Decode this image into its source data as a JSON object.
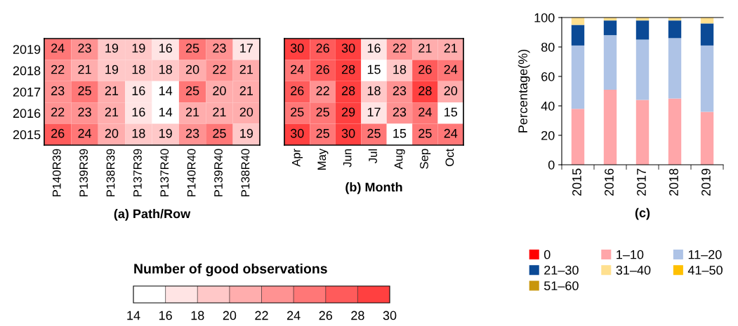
{
  "chart_data": [
    {
      "type": "heatmap",
      "xlabel": "(a) Path/Row",
      "categories": [
        "P140R39",
        "P139R39",
        "P138R39",
        "P137R39",
        "P137R40",
        "P140R40",
        "P139R40",
        "P138R40"
      ],
      "y_categories": [
        "2019",
        "2018",
        "2017",
        "2016",
        "2015"
      ],
      "cells": [
        [
          24,
          23,
          19,
          19,
          16,
          25,
          23,
          17
        ],
        [
          22,
          21,
          19,
          18,
          18,
          20,
          22,
          21
        ],
        [
          23,
          25,
          21,
          16,
          14,
          25,
          20,
          21
        ],
        [
          22,
          23,
          21,
          16,
          14,
          21,
          21,
          20
        ],
        [
          26,
          24,
          20,
          18,
          19,
          23,
          25,
          19
        ]
      ],
      "data_labels": true,
      "clabel": "Number of good observations",
      "clim": [
        14,
        30
      ],
      "cticks": [
        14,
        16,
        18,
        20,
        22,
        24,
        26,
        28,
        30
      ]
    },
    {
      "type": "heatmap",
      "xlabel": "(b) Month",
      "categories": [
        "Apr",
        "May",
        "Jun",
        "Jul",
        "Aug",
        "Sep",
        "Oct"
      ],
      "y_categories": [
        "2019",
        "2018",
        "2017",
        "2016",
        "2015"
      ],
      "tick_labels": "x",
      "cells": [
        [
          30,
          26,
          30,
          16,
          22,
          21,
          21
        ],
        [
          24,
          26,
          28,
          15,
          18,
          26,
          24
        ],
        [
          26,
          22,
          28,
          18,
          23,
          28,
          20
        ],
        [
          25,
          25,
          29,
          17,
          23,
          24,
          15
        ],
        [
          30,
          25,
          30,
          25,
          15,
          25,
          24
        ]
      ],
      "data_labels": true
    },
    {
      "type": "bar",
      "stacked": true,
      "xlabel": "(c)",
      "ylabel": "Percentage(%)",
      "categories": [
        "2015",
        "2016",
        "2017",
        "2018",
        "2019"
      ],
      "ylim": [
        0,
        100
      ],
      "yticks": [
        0,
        20,
        40,
        60,
        80,
        100
      ],
      "legend": "bottom",
      "grid": false,
      "series": [
        {
          "name": "0",
          "color": "#ff0000",
          "values": [
            0,
            0,
            0,
            0,
            0
          ]
        },
        {
          "name": "1–10",
          "color": "#ffa6a9",
          "values": [
            38,
            51,
            44,
            45,
            36
          ]
        },
        {
          "name": "11–20",
          "color": "#aec3e6",
          "values": [
            43,
            37,
            41,
            41,
            45
          ]
        },
        {
          "name": "21–30",
          "color": "#0b4a96",
          "values": [
            14,
            10,
            13,
            12,
            15
          ]
        },
        {
          "name": "31–40",
          "color": "#ffe08f",
          "values": [
            5,
            2,
            2,
            2,
            4
          ]
        },
        {
          "name": "41–50",
          "color": "#ffc000",
          "values": [
            0,
            0,
            0,
            0,
            0
          ]
        },
        {
          "name": "51–60",
          "color": "#c8960b",
          "values": [
            0,
            0,
            0,
            0,
            0
          ]
        }
      ]
    }
  ]
}
